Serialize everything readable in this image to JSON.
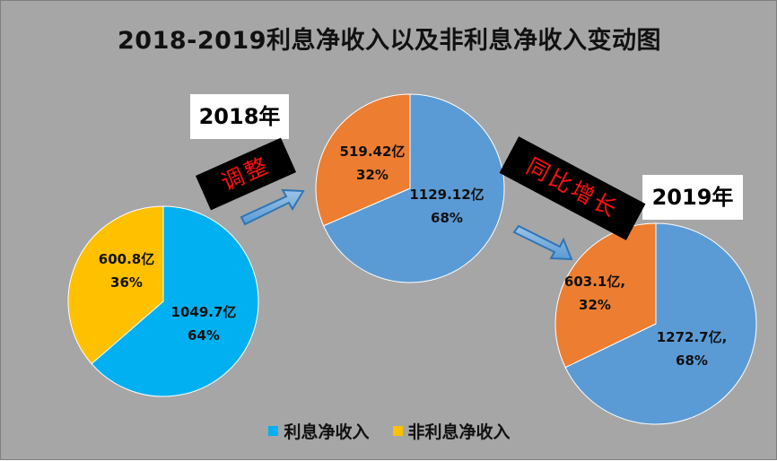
{
  "title": "2018-2019利息净收入以及非利息净收入变动图",
  "year_labels": {
    "y2018": "2018年",
    "y2019": "2019年"
  },
  "tags": {
    "adjust": "调整",
    "yoy_growth": "同比增长"
  },
  "legend": [
    {
      "label": "利息净收入",
      "color": "#00b0f0"
    },
    {
      "label": "非利息净收入",
      "color": "#ffc000"
    }
  ],
  "chart_data": [
    {
      "type": "pie",
      "categories": [
        "利息净收入",
        "非利息净收入"
      ],
      "values": [
        1049.7,
        600.8
      ],
      "data_labels": [
        [
          "1049.7亿",
          "64%"
        ],
        [
          "600.8亿",
          "36%"
        ]
      ],
      "colors": [
        "#00b0f0",
        "#ffc000"
      ]
    },
    {
      "type": "pie",
      "categories": [
        "利息净收入",
        "非利息净收入"
      ],
      "values": [
        1129.12,
        519.42
      ],
      "data_labels": [
        [
          "1129.12亿",
          "68%"
        ],
        [
          "519.42亿",
          "32%"
        ]
      ],
      "colors": [
        "#5b9bd5",
        "#ed7d31"
      ]
    },
    {
      "type": "pie",
      "categories": [
        "利息净收入",
        "非利息净收入"
      ],
      "values": [
        1272.7,
        603.1
      ],
      "data_labels": [
        [
          "1272.7亿,",
          "68%"
        ],
        [
          "603.1亿,",
          "32%"
        ]
      ],
      "colors": [
        "#5b9bd5",
        "#ed7d31"
      ]
    }
  ]
}
